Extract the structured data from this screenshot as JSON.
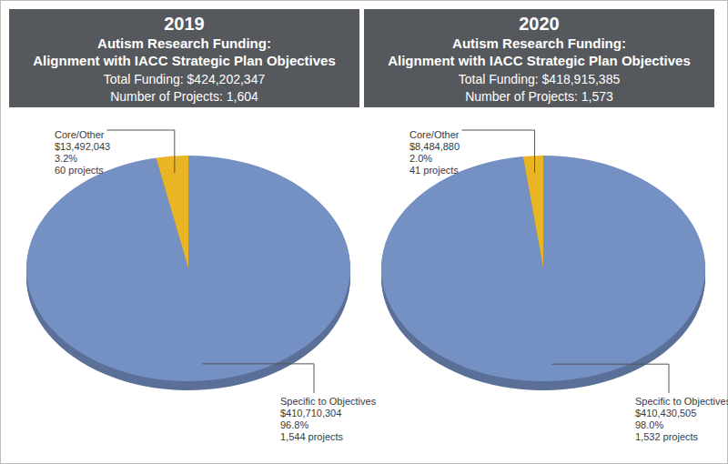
{
  "chart_data": [
    {
      "type": "pie",
      "title": "2019",
      "subtitle": [
        "Autism Research Funding:",
        "Alignment with IACC Strategic Plan Objectives",
        "Total Funding: $424,202,347",
        "Number of Projects: 1,604"
      ],
      "categories": [
        "Core/Other",
        "Specific to Objectives"
      ],
      "values": [
        3.2,
        96.8
      ],
      "value_labels": [
        "3.2%",
        "96.8%"
      ],
      "funding_labels": [
        "$13,492,043",
        "$410,710,304"
      ],
      "project_labels": [
        "60 projects",
        "1,544 projects"
      ],
      "colors": [
        "#e9b524",
        "#7590c3"
      ],
      "data_labels": true
    },
    {
      "type": "pie",
      "title": "2020",
      "subtitle": [
        "Autism Research Funding:",
        "Alignment with IACC Strategic Plan Objectives",
        "Total Funding: $418,915,385",
        "Number of Projects: 1,573"
      ],
      "categories": [
        "Core/Other",
        "Specific to Objectives"
      ],
      "values": [
        2.0,
        98.0
      ],
      "value_labels": [
        "2.0%",
        "98.0%"
      ],
      "funding_labels": [
        "$8,484,880",
        "$410,430,505"
      ],
      "project_labels": [
        "41 projects",
        "1,532 projects"
      ],
      "colors": [
        "#e9b524",
        "#7590c3"
      ],
      "data_labels": true
    }
  ]
}
